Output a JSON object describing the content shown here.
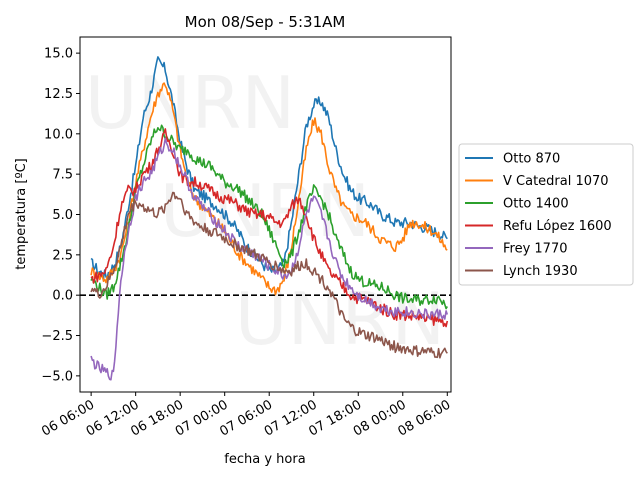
{
  "chart_data": {
    "type": "line",
    "title": "Mon 08/Sep - 5:31AM",
    "xlabel": "fecha y hora",
    "ylabel": "temperatura [ºC]",
    "x_unit": "hours",
    "xlim": [
      -1.5,
      48.5
    ],
    "ylim": [
      -6,
      16
    ],
    "xticks": [
      {
        "value": 0,
        "label": "06 06:00"
      },
      {
        "value": 6,
        "label": "06 12:00"
      },
      {
        "value": 12,
        "label": "06 18:00"
      },
      {
        "value": 18,
        "label": "07 00:00"
      },
      {
        "value": 24,
        "label": "07 06:00"
      },
      {
        "value": 30,
        "label": "07 12:00"
      },
      {
        "value": 36,
        "label": "07 18:00"
      },
      {
        "value": 42,
        "label": "08 00:00"
      },
      {
        "value": 48,
        "label": "08 06:00"
      }
    ],
    "yticks": [
      {
        "value": -5,
        "label": "−5.0"
      },
      {
        "value": -2.5,
        "label": "−2.5"
      },
      {
        "value": 0,
        "label": "0.0"
      },
      {
        "value": 2.5,
        "label": "2.5"
      },
      {
        "value": 5,
        "label": "5.0"
      },
      {
        "value": 7.5,
        "label": "7.5"
      },
      {
        "value": 10,
        "label": "10.0"
      },
      {
        "value": 12.5,
        "label": "12.5"
      },
      {
        "value": 15,
        "label": "15.0"
      }
    ],
    "reference_line": {
      "y": 0,
      "style": "dashed",
      "color": "#000000"
    },
    "legend_position": "right",
    "watermark": "UNRN",
    "series": [
      {
        "name": "Otto 870",
        "color": "#1f77b4",
        "x": [
          0,
          1,
          2,
          3,
          4,
          5,
          6,
          7,
          8,
          9,
          10,
          11,
          12,
          13,
          14,
          15,
          16,
          17,
          18,
          19,
          20,
          21,
          22,
          23,
          24,
          25,
          26,
          27,
          28,
          29,
          30,
          31,
          32,
          33,
          34,
          35,
          36,
          37,
          38,
          39,
          40,
          41,
          42,
          43,
          44,
          45,
          46,
          47,
          48
        ],
        "y": [
          2.0,
          1.5,
          1.2,
          1.8,
          3.0,
          5.5,
          8.0,
          11.0,
          12.5,
          14.5,
          14.0,
          12.0,
          9.5,
          7.8,
          6.5,
          6.2,
          5.8,
          5.5,
          5.0,
          4.5,
          3.8,
          3.0,
          2.5,
          2.0,
          1.5,
          1.5,
          2.0,
          4.5,
          7.5,
          10.5,
          11.8,
          12.0,
          11.0,
          9.0,
          7.5,
          6.5,
          6.0,
          5.8,
          5.5,
          5.0,
          4.8,
          4.5,
          4.5,
          4.5,
          4.3,
          4.2,
          4.0,
          3.8,
          3.5
        ]
      },
      {
        "name": "V Catedral 1070",
        "color": "#ff7f0e",
        "x": [
          0,
          1,
          2,
          3,
          4,
          5,
          6,
          7,
          8,
          9,
          10,
          11,
          12,
          13,
          14,
          15,
          16,
          17,
          18,
          19,
          20,
          21,
          22,
          23,
          24,
          25,
          26,
          27,
          28,
          29,
          30,
          31,
          32,
          33,
          34,
          35,
          36,
          37,
          38,
          39,
          40,
          41,
          42,
          43,
          44,
          45,
          46,
          47,
          48
        ],
        "y": [
          1.5,
          1.2,
          1.0,
          1.5,
          2.5,
          4.5,
          7.0,
          9.0,
          11.0,
          12.5,
          13.2,
          11.5,
          9.0,
          7.0,
          6.0,
          5.5,
          5.0,
          4.5,
          4.0,
          3.2,
          2.5,
          2.0,
          1.5,
          1.0,
          0.5,
          0.3,
          1.0,
          3.0,
          6.0,
          9.0,
          10.8,
          10.0,
          8.0,
          6.5,
          5.5,
          5.0,
          4.8,
          4.5,
          4.0,
          3.5,
          3.2,
          3.0,
          3.5,
          4.5,
          4.5,
          4.2,
          4.0,
          3.5,
          2.8
        ]
      },
      {
        "name": "Otto 1400",
        "color": "#2ca02c",
        "x": [
          0,
          1,
          2,
          3,
          4,
          5,
          6,
          7,
          8,
          9,
          10,
          11,
          12,
          13,
          14,
          15,
          16,
          17,
          18,
          19,
          20,
          21,
          22,
          23,
          24,
          25,
          26,
          27,
          28,
          29,
          30,
          31,
          32,
          33,
          34,
          35,
          36,
          37,
          38,
          39,
          40,
          41,
          42,
          43,
          44,
          45,
          46,
          47,
          48
        ],
        "y": [
          1.0,
          0.5,
          0.0,
          0.5,
          2.0,
          4.0,
          6.5,
          8.0,
          9.5,
          10.5,
          10.0,
          9.5,
          9.0,
          9.0,
          8.5,
          8.2,
          8.0,
          7.5,
          7.0,
          6.8,
          6.5,
          6.0,
          5.5,
          5.0,
          4.0,
          3.0,
          2.0,
          2.5,
          4.0,
          5.5,
          6.5,
          6.0,
          5.0,
          3.5,
          2.5,
          1.5,
          1.0,
          0.8,
          0.6,
          0.5,
          0.3,
          0.0,
          -0.2,
          -0.3,
          -0.3,
          -0.3,
          -0.2,
          -0.2,
          -0.7
        ]
      },
      {
        "name": "Refu López 1600",
        "color": "#d62728",
        "x": [
          0,
          1,
          2,
          3,
          4,
          5,
          6,
          7,
          8,
          9,
          10,
          11,
          12,
          13,
          14,
          15,
          16,
          17,
          18,
          19,
          20,
          21,
          22,
          23,
          24,
          25,
          26,
          27,
          28,
          29,
          30,
          31,
          32,
          33,
          34,
          35,
          36,
          37,
          38,
          39,
          40,
          41,
          42,
          43,
          44,
          45,
          46,
          47,
          48
        ],
        "y": [
          1.0,
          1.2,
          1.5,
          3.0,
          5.5,
          6.5,
          6.5,
          7.5,
          8.0,
          9.0,
          10.0,
          9.0,
          7.5,
          7.0,
          7.0,
          6.8,
          6.5,
          6.2,
          6.0,
          5.8,
          5.5,
          5.2,
          5.0,
          5.0,
          4.8,
          4.5,
          4.5,
          5.5,
          6.0,
          5.0,
          3.5,
          2.5,
          1.5,
          1.0,
          0.5,
          0.0,
          -0.2,
          -0.3,
          -0.5,
          -0.8,
          -1.0,
          -1.2,
          -1.2,
          -1.3,
          -1.3,
          -1.5,
          -1.5,
          -1.6,
          -1.6
        ]
      },
      {
        "name": "Frey 1770",
        "color": "#9467bd",
        "x": [
          0,
          1,
          2,
          3,
          4,
          5,
          6,
          7,
          8,
          9,
          10,
          11,
          12,
          13,
          14,
          15,
          16,
          17,
          18,
          19,
          20,
          21,
          22,
          23,
          24,
          25,
          26,
          27,
          28,
          29,
          30,
          31,
          32,
          33,
          34,
          35,
          36,
          37,
          38,
          39,
          40,
          41,
          42,
          43,
          44,
          45,
          46,
          47,
          48
        ],
        "y": [
          -4.0,
          -4.5,
          -4.8,
          -5.0,
          1.0,
          4.0,
          6.0,
          7.0,
          7.5,
          8.5,
          9.5,
          9.0,
          8.0,
          7.0,
          6.0,
          5.5,
          5.0,
          4.5,
          4.0,
          3.5,
          3.0,
          2.8,
          2.5,
          2.2,
          1.8,
          1.5,
          1.2,
          1.5,
          3.0,
          5.0,
          6.0,
          5.0,
          3.5,
          2.0,
          1.0,
          0.5,
          0.0,
          -0.3,
          -0.5,
          -0.8,
          -0.9,
          -1.0,
          -1.0,
          -1.1,
          -1.1,
          -1.2,
          -1.2,
          -1.2,
          -1.2
        ]
      },
      {
        "name": "Lynch 1930",
        "color": "#8c564b",
        "x": [
          0,
          1,
          2,
          3,
          4,
          5,
          6,
          7,
          8,
          9,
          10,
          11,
          12,
          13,
          14,
          15,
          16,
          17,
          18,
          19,
          20,
          21,
          22,
          23,
          24,
          25,
          26,
          27,
          28,
          29,
          30,
          31,
          32,
          33,
          34,
          35,
          36,
          37,
          38,
          39,
          40,
          41,
          42,
          43,
          44,
          45,
          46,
          47,
          48
        ],
        "y": [
          0.5,
          0.0,
          0.5,
          1.5,
          3.0,
          5.0,
          5.8,
          5.5,
          5.2,
          5.0,
          5.5,
          6.3,
          6.0,
          5.0,
          4.5,
          4.2,
          4.0,
          3.8,
          3.5,
          3.2,
          3.0,
          2.8,
          2.5,
          2.3,
          2.0,
          1.8,
          1.5,
          1.5,
          1.8,
          2.0,
          1.5,
          1.0,
          0.5,
          -0.5,
          -1.5,
          -2.0,
          -2.3,
          -2.5,
          -2.6,
          -2.8,
          -3.0,
          -3.2,
          -3.3,
          -3.4,
          -3.5,
          -3.5,
          -3.6,
          -3.6,
          -3.6
        ]
      }
    ]
  }
}
